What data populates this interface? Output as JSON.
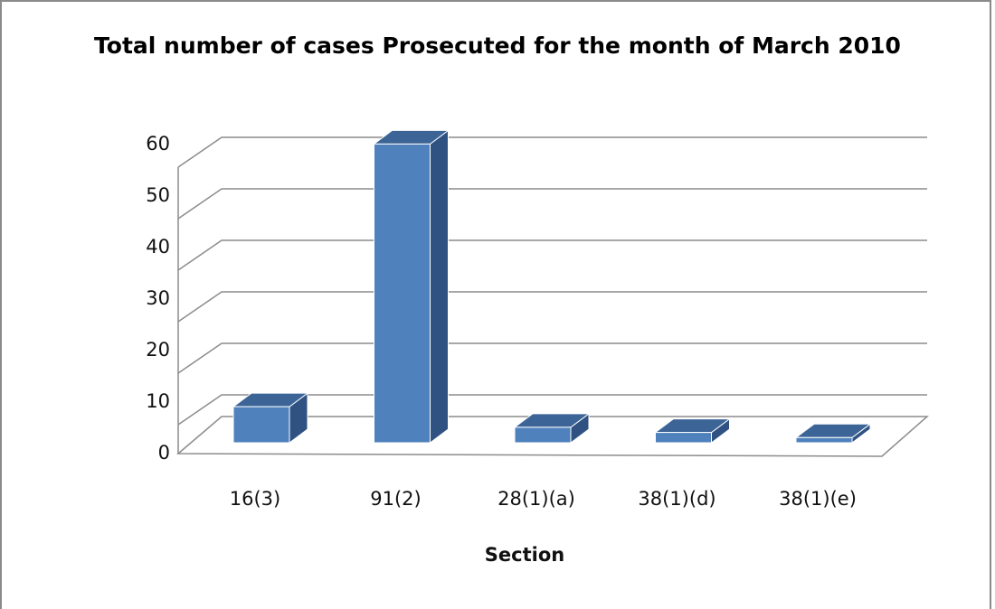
{
  "chart_data": {
    "type": "bar3d",
    "title": "Total number of cases Prosecuted for the month of March 2010",
    "x_label": "Section",
    "categories": [
      "16(3)",
      "91(2)",
      "28(1)(a)",
      "38(1)(d)",
      "38(1)(e)"
    ],
    "values": [
      7,
      58,
      3,
      2,
      1
    ],
    "color": "#4f81bd",
    "ylim": [
      0,
      60
    ],
    "yticks": [
      0,
      10,
      20,
      30,
      40,
      50,
      60
    ],
    "grid": true
  }
}
